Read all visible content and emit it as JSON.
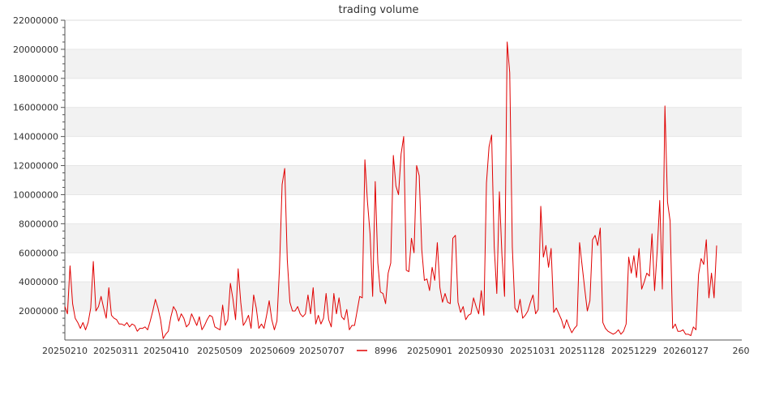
{
  "chart_data": {
    "type": "line",
    "title": "trading volume",
    "xlabel": "",
    "ylabel": "",
    "ylim": [
      0,
      22000000
    ],
    "yticks": [
      2000000,
      4000000,
      6000000,
      8000000,
      10000000,
      12000000,
      14000000,
      16000000,
      18000000,
      20000000,
      22000000
    ],
    "ytick_labels": [
      "2000000",
      "4000000",
      "6000000",
      "8000000",
      "10000000",
      "12000000",
      "14000000",
      "16000000",
      "18000000",
      "20000000",
      "22000000"
    ],
    "xtick_labels": [
      "20250210",
      "20250311",
      "20250410",
      "20250509",
      "20250609",
      "20250707",
      "20250901",
      "20250930",
      "20251031",
      "20251128",
      "20251229",
      "20260127",
      "260"
    ],
    "grid": "horizontal bands",
    "legend_position": "bottom-center",
    "series": [
      {
        "name": "8996",
        "color": "#e00000",
        "values": [
          2300000,
          1800000,
          5100000,
          2500000,
          1500000,
          1200000,
          800000,
          1200000,
          700000,
          1200000,
          2200000,
          5400000,
          2000000,
          2300000,
          3000000,
          2200000,
          1500000,
          3600000,
          1700000,
          1500000,
          1400000,
          1100000,
          1100000,
          1000000,
          1200000,
          900000,
          1100000,
          1000000,
          600000,
          800000,
          800000,
          900000,
          700000,
          1300000,
          2000000,
          2800000,
          2200000,
          1400000,
          100000,
          400000,
          600000,
          1600000,
          2300000,
          2000000,
          1300000,
          1800000,
          1500000,
          900000,
          1100000,
          1800000,
          1400000,
          1000000,
          1600000,
          700000,
          1000000,
          1400000,
          1700000,
          1600000,
          900000,
          800000,
          700000,
          2400000,
          1000000,
          1400000,
          3900000,
          2800000,
          1400000,
          4900000,
          2600000,
          1000000,
          1300000,
          1700000,
          800000,
          3100000,
          2200000,
          800000,
          1100000,
          800000,
          1700000,
          2700000,
          1400000,
          700000,
          1300000,
          5000000,
          10700000,
          11800000,
          5500000,
          2600000,
          2000000,
          2000000,
          2300000,
          1800000,
          1600000,
          1800000,
          3100000,
          1800000,
          3600000,
          1100000,
          1700000,
          1100000,
          1500000,
          3200000,
          1400000,
          900000,
          3200000,
          1800000,
          2900000,
          1600000,
          1400000,
          2100000,
          700000,
          1000000,
          1000000,
          2000000,
          3000000,
          2900000,
          12400000,
          9500000,
          7300000,
          3000000,
          10900000,
          5300000,
          3300000,
          3200000,
          2500000,
          4600000,
          5300000,
          12700000,
          10600000,
          10000000,
          12800000,
          14000000,
          4800000,
          4700000,
          7000000,
          6000000,
          12000000,
          11300000,
          6200000,
          4100000,
          4200000,
          3400000,
          5000000,
          4100000,
          6700000,
          3600000,
          2600000,
          3200000,
          2600000,
          2500000,
          7000000,
          7200000,
          2600000,
          1900000,
          2300000,
          1400000,
          1700000,
          1800000,
          2900000,
          2300000,
          1800000,
          3400000,
          1700000,
          10800000,
          13300000,
          14100000,
          6400000,
          3200000,
          10200000,
          5800000,
          3000000,
          20500000,
          18400000,
          6400000,
          2200000,
          1900000,
          2800000,
          1500000,
          1700000,
          2000000,
          2600000,
          3100000,
          1800000,
          2100000,
          9200000,
          5700000,
          6500000,
          5000000,
          6300000,
          1900000,
          2200000,
          1800000,
          1400000,
          800000,
          1400000,
          900000,
          500000,
          800000,
          1000000,
          6700000,
          5100000,
          3500000,
          2000000,
          2700000,
          6900000,
          7200000,
          6500000,
          7700000,
          1200000,
          800000,
          600000,
          500000,
          400000,
          500000,
          700000,
          400000,
          600000,
          1100000,
          5700000,
          4600000,
          5800000,
          4300000,
          6300000,
          3500000,
          4000000,
          4600000,
          4400000,
          7300000,
          3400000,
          6100000,
          9600000,
          3500000,
          16100000,
          9500000,
          8200000,
          800000,
          1100000,
          600000,
          600000,
          700000,
          400000,
          400000,
          300000,
          900000,
          700000,
          4500000,
          5600000,
          5200000,
          6900000,
          2900000,
          4600000,
          2900000,
          6500000
        ]
      }
    ]
  }
}
